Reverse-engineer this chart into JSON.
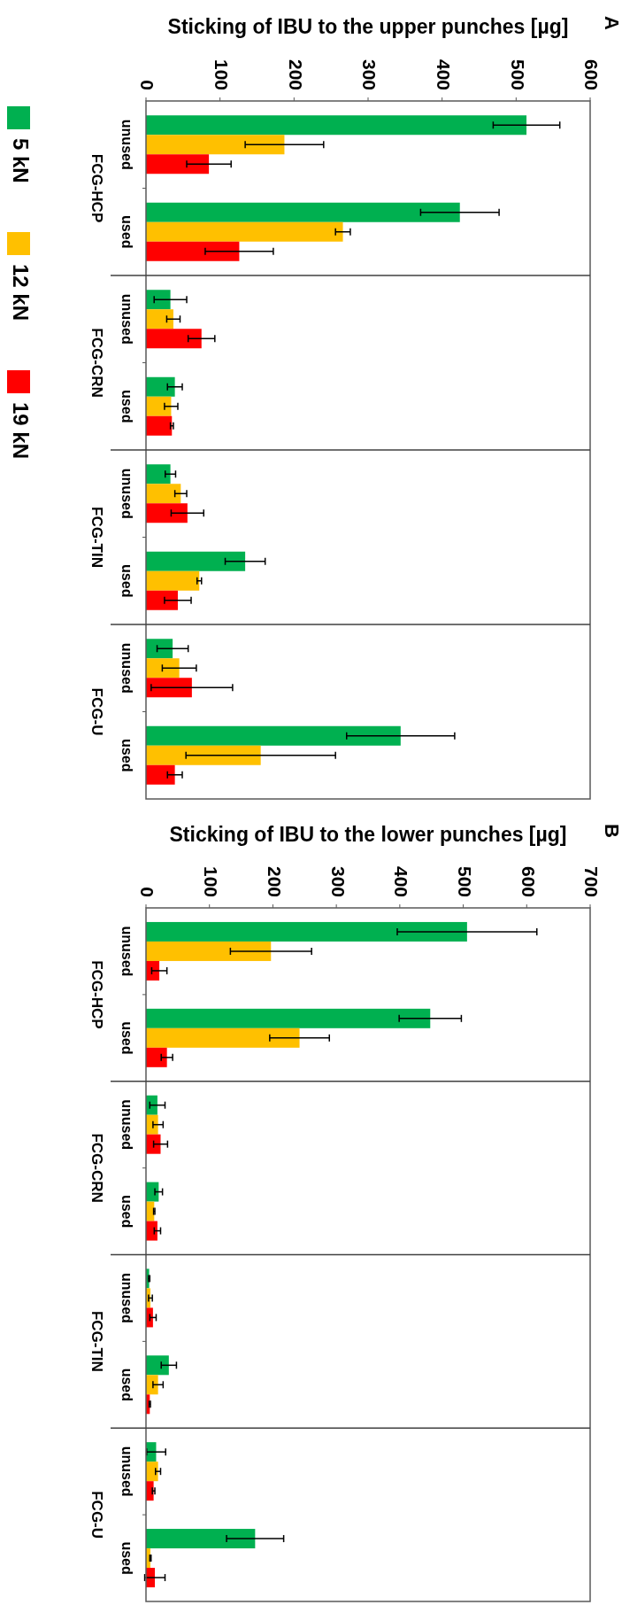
{
  "chart_data": [
    {
      "type": "bar",
      "orientation": "horizontal",
      "title": "Sticking of IBU to the upper punches [µg]",
      "annotations": [
        "A",
        "FCG-HCP",
        "FCG-CRN",
        "FCG-TIN",
        "FCG-U"
      ],
      "categories": [
        "unused",
        "used",
        "unused",
        "used",
        "unused",
        "used",
        "unused",
        "used"
      ],
      "xlim": [
        0,
        600
      ],
      "xticks": [
        0,
        100,
        200,
        300,
        400,
        500,
        600
      ],
      "legend": "left",
      "series": [
        {
          "name": "5 kN",
          "color": "#00b050",
          "values": [
            514,
            424,
            33,
            39,
            33,
            134,
            36,
            344
          ],
          "errors": [
            45,
            53,
            22,
            10,
            7,
            27,
            21,
            73
          ]
        },
        {
          "name": "12 kN",
          "color": "#ffc000",
          "values": [
            187,
            266,
            37,
            34,
            47,
            72,
            45,
            155
          ],
          "errors": [
            53,
            10,
            9,
            9,
            8,
            3,
            23,
            101
          ]
        },
        {
          "name": "19 kN",
          "color": "#ff0000",
          "values": [
            85,
            126,
            75,
            35,
            56,
            43,
            62,
            39
          ],
          "errors": [
            30,
            46,
            18,
            2,
            22,
            18,
            55,
            10
          ]
        }
      ]
    },
    {
      "type": "bar",
      "orientation": "horizontal",
      "title": "Sticking of IBU to the lower punches [µg]",
      "annotations": [
        "B",
        "FCG-HCP",
        "FCG-CRN",
        "FCG-TIN",
        "FCG-U"
      ],
      "categories": [
        "unused",
        "used",
        "unused",
        "used",
        "unused",
        "used",
        "unused",
        "used"
      ],
      "xlim": [
        0,
        700
      ],
      "xticks": [
        0,
        100,
        200,
        300,
        400,
        500,
        600,
        700
      ],
      "series": [
        {
          "color": "#00b050",
          "values": [
            506,
            448,
            18,
            20,
            5,
            36,
            16,
            172
          ],
          "errors": [
            110,
            49,
            12,
            6,
            1,
            12,
            15,
            45
          ]
        },
        {
          "color": "#ffc000",
          "values": [
            197,
            242,
            19,
            13,
            7,
            19,
            19,
            7
          ],
          "errors": [
            64,
            47,
            8,
            1,
            3,
            8,
            4,
            1
          ]
        },
        {
          "color": "#ff0000",
          "values": [
            21,
            33,
            23,
            18,
            11,
            6,
            12,
            14
          ],
          "errors": [
            12,
            9,
            11,
            5,
            5,
            1,
            2,
            16
          ]
        }
      ]
    }
  ]
}
